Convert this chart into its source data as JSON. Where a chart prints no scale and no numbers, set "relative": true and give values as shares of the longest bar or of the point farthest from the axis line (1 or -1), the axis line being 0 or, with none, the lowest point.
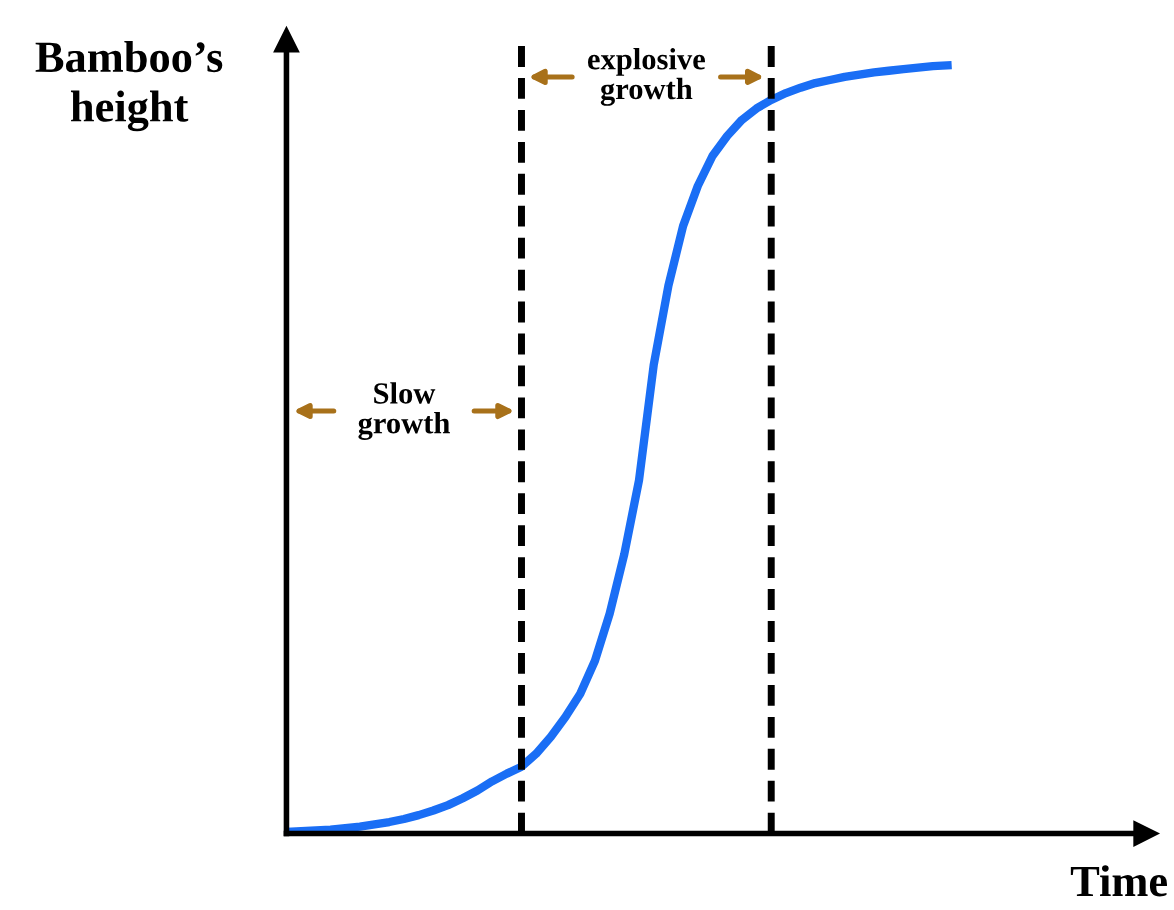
{
  "chart_data": {
    "type": "line",
    "relative": true,
    "ylabel": "Bamboo’s height",
    "xlabel": "Time",
    "categories": [
      null,
      null,
      null,
      null,
      null,
      null,
      null,
      null,
      null,
      null,
      null,
      null,
      null,
      null,
      null,
      null,
      null,
      null,
      null,
      null,
      null,
      null,
      null,
      null,
      null,
      null,
      null,
      null,
      null,
      null,
      null,
      null,
      null,
      null,
      null,
      null,
      null,
      null,
      null,
      null,
      null,
      null,
      null,
      null,
      null,
      null
    ],
    "series": [
      {
        "color": "#1a6ef5",
        "values": [
          0.002,
          0.003,
          0.004,
          0.005,
          0.007,
          0.009,
          0.012,
          0.015,
          0.019,
          0.024,
          0.03,
          0.037,
          0.046,
          0.056,
          0.068,
          0.078,
          0.087,
          0.104,
          0.126,
          0.152,
          0.182,
          0.225,
          0.286,
          0.364,
          0.46,
          0.61,
          0.713,
          0.791,
          0.843,
          0.882,
          0.908,
          0.929,
          0.944,
          0.955,
          0.964,
          0.971,
          0.977,
          0.981,
          0.985,
          0.988,
          0.991,
          0.993,
          0.995,
          0.997,
          0.999,
          1.0
        ]
      }
    ],
    "annotations": [
      "Slow\ngrowth",
      "explosive\ngrowth"
    ],
    "marker": "none",
    "line_style": "solid",
    "legend": false
  }
}
